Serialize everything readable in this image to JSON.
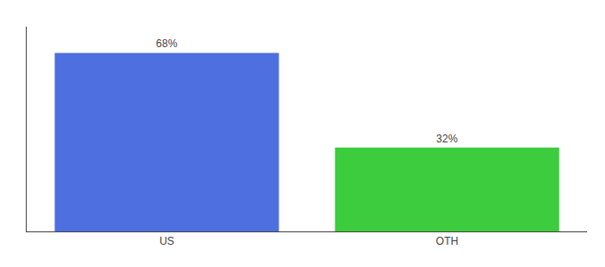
{
  "chart_data": {
    "type": "bar",
    "categories": [
      "US",
      "OTH"
    ],
    "values": [
      68,
      32
    ],
    "colors": [
      "#4d6fe0",
      "#3dcc3d"
    ],
    "ylim": [
      0,
      78
    ],
    "yticks": [],
    "grid": false,
    "data_labels": true,
    "value_labels": [
      "68%",
      "32%"
    ],
    "tick_labels": "x"
  }
}
